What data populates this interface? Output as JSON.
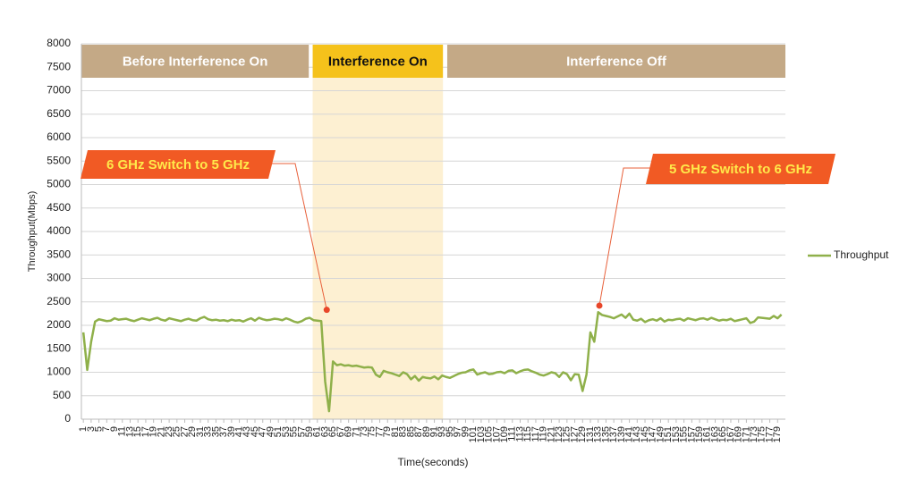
{
  "chart_data": {
    "type": "line",
    "x_label": "Time(seconds)",
    "y_label": "Throughput(Mbps)",
    "xlim": [
      0.5,
      181
    ],
    "ylim": [
      0,
      8000
    ],
    "yticks": [
      0,
      500,
      1000,
      1500,
      2000,
      2500,
      3000,
      3500,
      4000,
      4500,
      5000,
      5500,
      6000,
      6500,
      7000,
      7500,
      8000
    ],
    "xticks": [
      1,
      3,
      5,
      7,
      9,
      11,
      13,
      15,
      17,
      19,
      21,
      23,
      25,
      27,
      29,
      31,
      33,
      35,
      37,
      39,
      41,
      43,
      45,
      47,
      49,
      51,
      53,
      55,
      57,
      59,
      61,
      63,
      65,
      67,
      69,
      71,
      73,
      75,
      77,
      79,
      81,
      83,
      85,
      87,
      89,
      91,
      93,
      95,
      97,
      99,
      101,
      103,
      105,
      107,
      109,
      111,
      113,
      115,
      117,
      119,
      121,
      123,
      125,
      127,
      129,
      131,
      133,
      135,
      137,
      139,
      141,
      143,
      145,
      147,
      149,
      151,
      153,
      155,
      157,
      159,
      161,
      163,
      165,
      167,
      169,
      171,
      173,
      175,
      177,
      179
    ],
    "grid": true,
    "legend": "right",
    "x": [
      1,
      2,
      3,
      4,
      5,
      6,
      7,
      8,
      9,
      10,
      11,
      12,
      13,
      14,
      15,
      16,
      17,
      18,
      19,
      20,
      21,
      22,
      23,
      24,
      25,
      26,
      27,
      28,
      29,
      30,
      31,
      32,
      33,
      34,
      35,
      36,
      37,
      38,
      39,
      40,
      41,
      42,
      43,
      44,
      45,
      46,
      47,
      48,
      49,
      50,
      51,
      52,
      53,
      54,
      55,
      56,
      57,
      58,
      59,
      60,
      61,
      62,
      63,
      64,
      65,
      66,
      67,
      68,
      69,
      70,
      71,
      72,
      73,
      74,
      75,
      76,
      77,
      78,
      79,
      80,
      81,
      82,
      83,
      84,
      85,
      86,
      87,
      88,
      89,
      90,
      91,
      92,
      93,
      94,
      95,
      96,
      97,
      98,
      99,
      100,
      101,
      102,
      103,
      104,
      105,
      106,
      107,
      108,
      109,
      110,
      111,
      112,
      113,
      114,
      115,
      116,
      117,
      118,
      119,
      120,
      121,
      122,
      123,
      124,
      125,
      126,
      127,
      128,
      129,
      130,
      131,
      132,
      133,
      134,
      135,
      136,
      137,
      138,
      139,
      140,
      141,
      142,
      143,
      144,
      145,
      146,
      147,
      148,
      149,
      150,
      151,
      152,
      153,
      154,
      155,
      156,
      157,
      158,
      159,
      160,
      161,
      162,
      163,
      164,
      165,
      166,
      167,
      168,
      169,
      170,
      171,
      172,
      173,
      174,
      175,
      176,
      177,
      178,
      179,
      180
    ],
    "series": [
      {
        "name": "Throughput",
        "color": "#8fb04a",
        "values": [
          1850,
          1050,
          1650,
          2080,
          2130,
          2110,
          2090,
          2100,
          2150,
          2120,
          2130,
          2140,
          2110,
          2090,
          2120,
          2150,
          2130,
          2110,
          2140,
          2160,
          2120,
          2100,
          2150,
          2130,
          2110,
          2090,
          2120,
          2140,
          2110,
          2100,
          2150,
          2180,
          2130,
          2110,
          2120,
          2100,
          2110,
          2090,
          2120,
          2100,
          2110,
          2080,
          2120,
          2150,
          2100,
          2160,
          2130,
          2110,
          2120,
          2140,
          2130,
          2110,
          2150,
          2120,
          2080,
          2060,
          2090,
          2140,
          2160,
          2110,
          2100,
          2090,
          800,
          170,
          1230,
          1150,
          1170,
          1140,
          1150,
          1130,
          1140,
          1120,
          1100,
          1110,
          1100,
          950,
          900,
          1030,
          1000,
          980,
          950,
          920,
          1000,
          960,
          850,
          920,
          820,
          900,
          880,
          870,
          910,
          850,
          930,
          900,
          880,
          920,
          960,
          990,
          1000,
          1040,
          1060,
          950,
          980,
          1000,
          960,
          970,
          1000,
          1010,
          980,
          1030,
          1040,
          980,
          1020,
          1050,
          1060,
          1020,
          990,
          950,
          930,
          960,
          1000,
          980,
          900,
          1000,
          960,
          830,
          960,
          950,
          600,
          950,
          1850,
          1650,
          2280,
          2220,
          2200,
          2180,
          2150,
          2190,
          2230,
          2160,
          2250,
          2120,
          2100,
          2140,
          2070,
          2110,
          2130,
          2100,
          2150,
          2080,
          2120,
          2110,
          2130,
          2140,
          2100,
          2150,
          2130,
          2110,
          2140,
          2150,
          2120,
          2160,
          2130,
          2100,
          2120,
          2110,
          2140,
          2090,
          2110,
          2130,
          2150,
          2050,
          2080,
          2170,
          2160,
          2150,
          2140,
          2200,
          2150,
          2230
        ]
      }
    ],
    "regions": [
      {
        "label": "Before Interference On",
        "start": 0.5,
        "end": 58.8,
        "color": "#c4a986",
        "text_color": "#ffffff"
      },
      {
        "label": "Interference On",
        "start": 59.8,
        "end": 93.2,
        "color": "#f5c21b",
        "text_color": "#111111",
        "shade": "#fdf0d2"
      },
      {
        "label": "Interference Off",
        "start": 94.3,
        "end": 181,
        "color": "#c4a986",
        "text_color": "#ffffff"
      }
    ],
    "annotations": [
      {
        "text": "6 GHz Switch to 5 GHz",
        "x": 63.4,
        "y": 2330
      },
      {
        "text": "5 GHz Switch to 6 GHz",
        "x": 133.3,
        "y": 2420
      }
    ]
  }
}
